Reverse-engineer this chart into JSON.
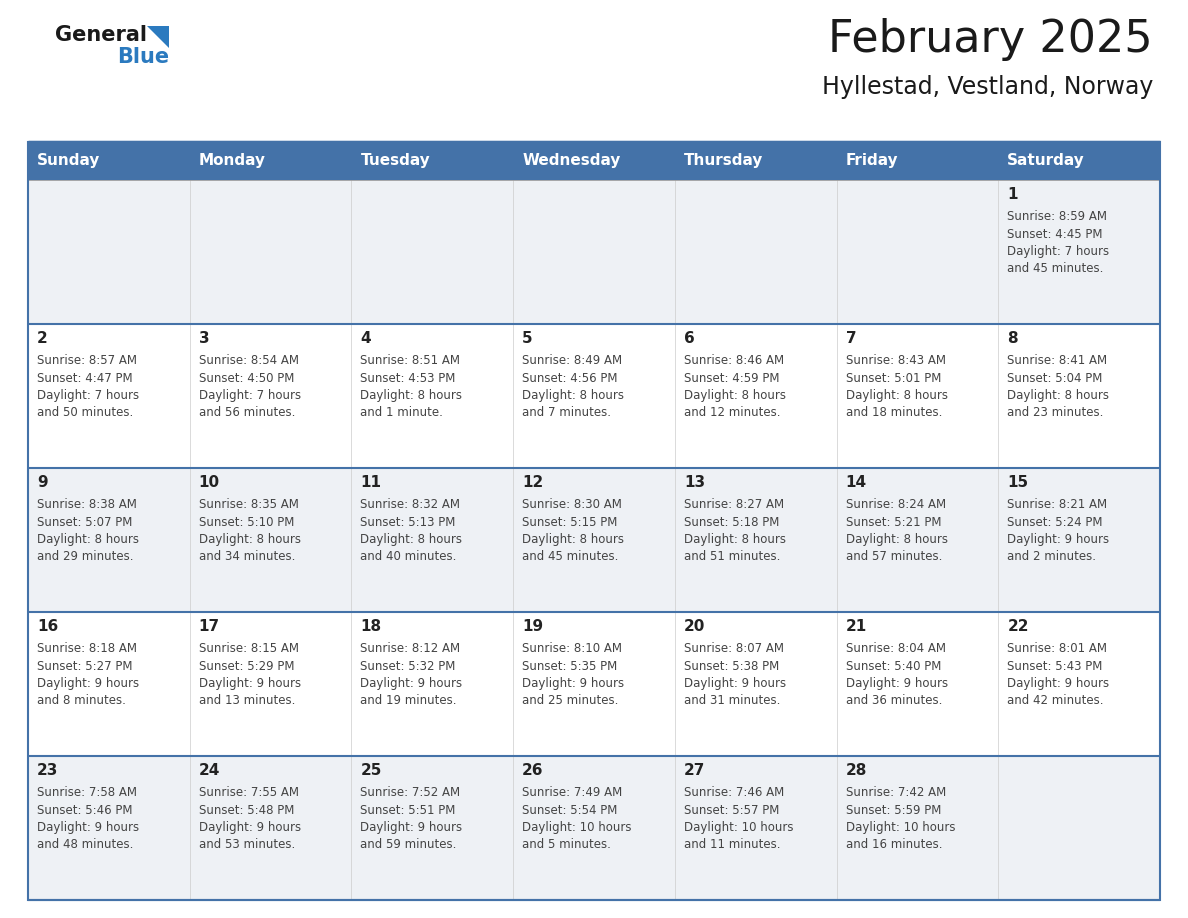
{
  "title": "February 2025",
  "subtitle": "Hyllestad, Vestland, Norway",
  "days_of_week": [
    "Sunday",
    "Monday",
    "Tuesday",
    "Wednesday",
    "Thursday",
    "Friday",
    "Saturday"
  ],
  "header_bg": "#4472a8",
  "header_text": "#ffffff",
  "row_bg_light": "#eef1f5",
  "row_bg_white": "#ffffff",
  "border_color": "#4472a8",
  "text_color": "#444444",
  "day_num_color": "#222222",
  "info_text_color": "#444444",
  "calendar": [
    [
      null,
      null,
      null,
      null,
      null,
      null,
      {
        "day": "1",
        "sunrise": "8:59 AM",
        "sunset": "4:45 PM",
        "daylight_h": "7 hours",
        "daylight_m": "and 45 minutes."
      }
    ],
    [
      {
        "day": "2",
        "sunrise": "8:57 AM",
        "sunset": "4:47 PM",
        "daylight_h": "7 hours",
        "daylight_m": "and 50 minutes."
      },
      {
        "day": "3",
        "sunrise": "8:54 AM",
        "sunset": "4:50 PM",
        "daylight_h": "7 hours",
        "daylight_m": "and 56 minutes."
      },
      {
        "day": "4",
        "sunrise": "8:51 AM",
        "sunset": "4:53 PM",
        "daylight_h": "8 hours",
        "daylight_m": "and 1 minute."
      },
      {
        "day": "5",
        "sunrise": "8:49 AM",
        "sunset": "4:56 PM",
        "daylight_h": "8 hours",
        "daylight_m": "and 7 minutes."
      },
      {
        "day": "6",
        "sunrise": "8:46 AM",
        "sunset": "4:59 PM",
        "daylight_h": "8 hours",
        "daylight_m": "and 12 minutes."
      },
      {
        "day": "7",
        "sunrise": "8:43 AM",
        "sunset": "5:01 PM",
        "daylight_h": "8 hours",
        "daylight_m": "and 18 minutes."
      },
      {
        "day": "8",
        "sunrise": "8:41 AM",
        "sunset": "5:04 PM",
        "daylight_h": "8 hours",
        "daylight_m": "and 23 minutes."
      }
    ],
    [
      {
        "day": "9",
        "sunrise": "8:38 AM",
        "sunset": "5:07 PM",
        "daylight_h": "8 hours",
        "daylight_m": "and 29 minutes."
      },
      {
        "day": "10",
        "sunrise": "8:35 AM",
        "sunset": "5:10 PM",
        "daylight_h": "8 hours",
        "daylight_m": "and 34 minutes."
      },
      {
        "day": "11",
        "sunrise": "8:32 AM",
        "sunset": "5:13 PM",
        "daylight_h": "8 hours",
        "daylight_m": "and 40 minutes."
      },
      {
        "day": "12",
        "sunrise": "8:30 AM",
        "sunset": "5:15 PM",
        "daylight_h": "8 hours",
        "daylight_m": "and 45 minutes."
      },
      {
        "day": "13",
        "sunrise": "8:27 AM",
        "sunset": "5:18 PM",
        "daylight_h": "8 hours",
        "daylight_m": "and 51 minutes."
      },
      {
        "day": "14",
        "sunrise": "8:24 AM",
        "sunset": "5:21 PM",
        "daylight_h": "8 hours",
        "daylight_m": "and 57 minutes."
      },
      {
        "day": "15",
        "sunrise": "8:21 AM",
        "sunset": "5:24 PM",
        "daylight_h": "9 hours",
        "daylight_m": "and 2 minutes."
      }
    ],
    [
      {
        "day": "16",
        "sunrise": "8:18 AM",
        "sunset": "5:27 PM",
        "daylight_h": "9 hours",
        "daylight_m": "and 8 minutes."
      },
      {
        "day": "17",
        "sunrise": "8:15 AM",
        "sunset": "5:29 PM",
        "daylight_h": "9 hours",
        "daylight_m": "and 13 minutes."
      },
      {
        "day": "18",
        "sunrise": "8:12 AM",
        "sunset": "5:32 PM",
        "daylight_h": "9 hours",
        "daylight_m": "and 19 minutes."
      },
      {
        "day": "19",
        "sunrise": "8:10 AM",
        "sunset": "5:35 PM",
        "daylight_h": "9 hours",
        "daylight_m": "and 25 minutes."
      },
      {
        "day": "20",
        "sunrise": "8:07 AM",
        "sunset": "5:38 PM",
        "daylight_h": "9 hours",
        "daylight_m": "and 31 minutes."
      },
      {
        "day": "21",
        "sunrise": "8:04 AM",
        "sunset": "5:40 PM",
        "daylight_h": "9 hours",
        "daylight_m": "and 36 minutes."
      },
      {
        "day": "22",
        "sunrise": "8:01 AM",
        "sunset": "5:43 PM",
        "daylight_h": "9 hours",
        "daylight_m": "and 42 minutes."
      }
    ],
    [
      {
        "day": "23",
        "sunrise": "7:58 AM",
        "sunset": "5:46 PM",
        "daylight_h": "9 hours",
        "daylight_m": "and 48 minutes."
      },
      {
        "day": "24",
        "sunrise": "7:55 AM",
        "sunset": "5:48 PM",
        "daylight_h": "9 hours",
        "daylight_m": "and 53 minutes."
      },
      {
        "day": "25",
        "sunrise": "7:52 AM",
        "sunset": "5:51 PM",
        "daylight_h": "9 hours",
        "daylight_m": "and 59 minutes."
      },
      {
        "day": "26",
        "sunrise": "7:49 AM",
        "sunset": "5:54 PM",
        "daylight_h": "10 hours",
        "daylight_m": "and 5 minutes."
      },
      {
        "day": "27",
        "sunrise": "7:46 AM",
        "sunset": "5:57 PM",
        "daylight_h": "10 hours",
        "daylight_m": "and 11 minutes."
      },
      {
        "day": "28",
        "sunrise": "7:42 AM",
        "sunset": "5:59 PM",
        "daylight_h": "10 hours",
        "daylight_m": "and 16 minutes."
      },
      null
    ]
  ]
}
